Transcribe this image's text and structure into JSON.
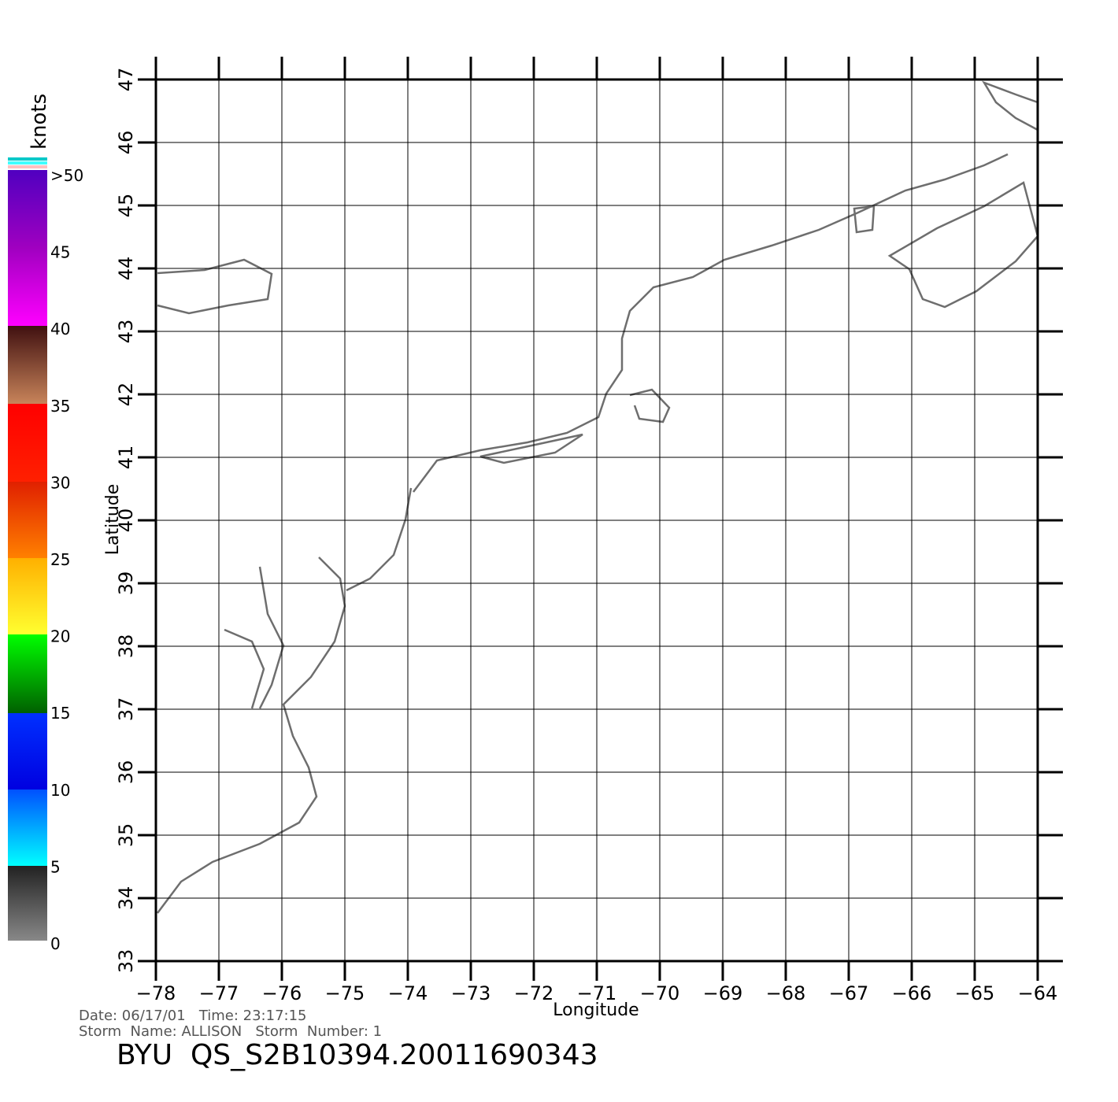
{
  "map": {
    "xlabel": "Longitude",
    "ylabel": "Latitude",
    "xlim": [
      -78,
      -64
    ],
    "ylim": [
      33,
      47
    ],
    "xticks": [
      {
        "value": -78,
        "label": "−78"
      },
      {
        "value": -77,
        "label": "−77"
      },
      {
        "value": -76,
        "label": "−76"
      },
      {
        "value": -75,
        "label": "−75"
      },
      {
        "value": -74,
        "label": "−74"
      },
      {
        "value": -73,
        "label": "−73"
      },
      {
        "value": -72,
        "label": "−72"
      },
      {
        "value": -71,
        "label": "−71"
      },
      {
        "value": -70,
        "label": "−70"
      },
      {
        "value": -69,
        "label": "−69"
      },
      {
        "value": -68,
        "label": "−68"
      },
      {
        "value": -67,
        "label": "−67"
      },
      {
        "value": -66,
        "label": "−66"
      },
      {
        "value": -65,
        "label": "−65"
      },
      {
        "value": -64,
        "label": "−64"
      }
    ],
    "yticks": [
      33,
      34,
      35,
      36,
      37,
      38,
      39,
      40,
      41,
      42,
      43,
      44,
      45,
      46,
      47
    ],
    "colorbar": {
      "title": "knots",
      "labels": [
        "0",
        "5",
        "10",
        "15",
        "20",
        "25",
        "30",
        "35",
        "40",
        "45",
        ">50"
      ]
    },
    "footer": {
      "line1": "Date: 06/17/01   Time: 23:17:15",
      "line2": "Storm  Name: ALLISON   Storm  Number: 1",
      "line3": "BYU  QS_S2B10394.20011690343"
    }
  }
}
